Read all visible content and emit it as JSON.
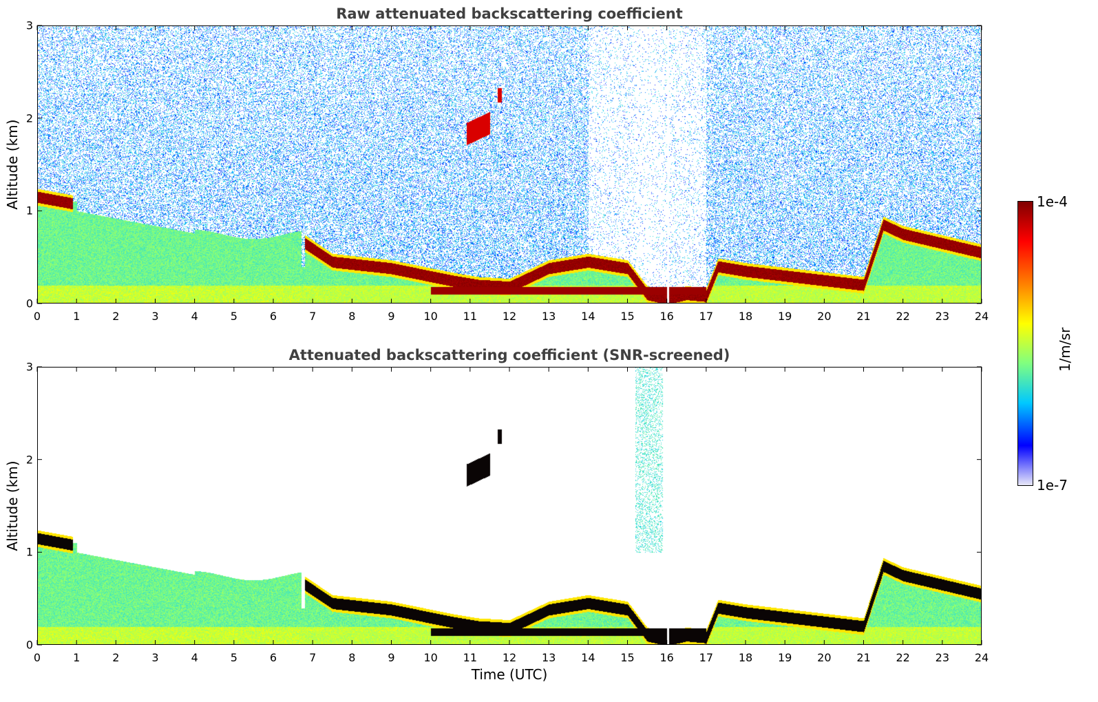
{
  "chart_data": [
    {
      "type": "heatmap",
      "title": "Raw attenuated backscattering coefficient",
      "xlabel": "",
      "ylabel": "Altitude (km)",
      "xlim": [
        0,
        24
      ],
      "ylim": [
        0,
        3
      ],
      "xticks": [
        "0",
        "1",
        "2",
        "3",
        "4",
        "5",
        "6",
        "7",
        "8",
        "9",
        "10",
        "11",
        "12",
        "13",
        "14",
        "15",
        "16",
        "17",
        "18",
        "19",
        "20",
        "21",
        "22",
        "23",
        "24"
      ],
      "yticks": [
        "0",
        "1",
        "2",
        "3"
      ],
      "layers": [
        {
          "t": [
            0,
            0.9,
            1.2,
            6.6,
            6.8,
            7.5,
            9,
            10.5,
            11.2,
            12,
            13,
            14,
            15,
            15.5,
            16,
            16.5,
            17,
            17.3,
            18,
            19,
            20,
            21,
            21.5,
            22,
            23,
            24
          ],
          "z": [
            1.15,
            1.08,
            null,
            null,
            0.65,
            0.45,
            0.38,
            0.25,
            0.2,
            0.18,
            0.38,
            0.45,
            0.38,
            0.1,
            0.05,
            0.1,
            0.08,
            0.4,
            0.35,
            0.3,
            0.25,
            0.2,
            0.85,
            0.75,
            0.65,
            0.55
          ]
        }
      ]
    },
    {
      "type": "heatmap",
      "title": "Attenuated backscattering coefficient (SNR-screened)",
      "xlabel": "Time (UTC)",
      "ylabel": "Altitude (km)",
      "xlim": [
        0,
        24
      ],
      "ylim": [
        0,
        3
      ],
      "xticks": [
        "0",
        "1",
        "2",
        "3",
        "4",
        "5",
        "6",
        "7",
        "8",
        "9",
        "10",
        "11",
        "12",
        "13",
        "14",
        "15",
        "16",
        "17",
        "18",
        "19",
        "20",
        "21",
        "22",
        "23",
        "24"
      ],
      "yticks": [
        "0",
        "1",
        "2",
        "3"
      ]
    }
  ],
  "colorbar": {
    "label": "1/m/sr",
    "max_label": "1e-4",
    "min_label": "1e-7",
    "colors": [
      "#e8e8f8",
      "#0000ff",
      "#00c8ff",
      "#80ff80",
      "#ffff00",
      "#ff8000",
      "#ff0000",
      "#800000"
    ]
  }
}
